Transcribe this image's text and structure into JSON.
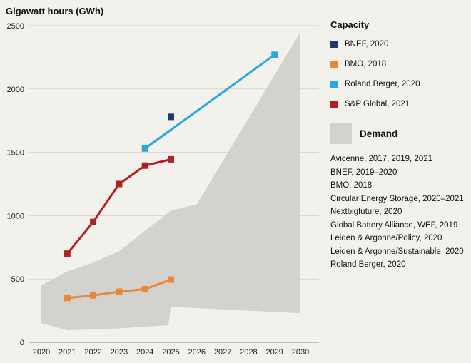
{
  "title": "Gigawatt hours (GWh)",
  "legend": {
    "capacity_heading": "Capacity",
    "capacity_items": [
      {
        "label": "BNEF, 2020",
        "color": "#1e3a6e"
      },
      {
        "label": "BMO, 2018",
        "color": "#e8873a"
      },
      {
        "label": "Roland Berger, 2020",
        "color": "#29a8e0"
      },
      {
        "label": "S&P Global, 2021",
        "color": "#b02025"
      }
    ],
    "demand_heading": "Demand",
    "demand_color": "#d4d2ce",
    "demand_sources": [
      "Avicenne, 2017, 2019, 2021",
      "BNEF, 2019–2020",
      "BMO, 2018",
      "Circular Energy Storage, 2020–2021",
      "Nextbigfuture, 2020",
      "Global Battery Alliance, WEF, 2019",
      "Leiden & Argonne/Policy, 2020",
      "Leiden & Argonne/Sustainable, 2020",
      "Roland Berger, 2020"
    ]
  },
  "chart_data": {
    "type": "line",
    "title": "Gigawatt hours (GWh)",
    "xlabel": "",
    "ylabel": "Gigawatt hours (GWh)",
    "xlim": [
      2019.5,
      2030.7
    ],
    "ylim": [
      0,
      2500
    ],
    "x_ticks": [
      2020,
      2021,
      2022,
      2023,
      2024,
      2025,
      2026,
      2027,
      2028,
      2029,
      2030
    ],
    "y_ticks": [
      0,
      500,
      1000,
      1500,
      2000,
      2500
    ],
    "grid": "horizontal",
    "legend_position": "right",
    "colors": {
      "background": "#f2f1ec",
      "gridline": "#d7d5cf",
      "baseline": "#8b8983",
      "text": "#1a1a1a"
    },
    "series": [
      {
        "name": "BNEF, 2020",
        "color": "#1e3a6e",
        "marker": "square",
        "x": [
          2025
        ],
        "y": [
          1780
        ]
      },
      {
        "name": "BMO, 2018",
        "color": "#e8873a",
        "marker": "square",
        "x": [
          2021,
          2022,
          2023,
          2024,
          2025
        ],
        "y": [
          350,
          370,
          400,
          420,
          495
        ]
      },
      {
        "name": "Roland Berger, 2020",
        "color": "#29a8e0",
        "marker": "square",
        "x": [
          2024,
          2029
        ],
        "y": [
          1530,
          2270
        ]
      },
      {
        "name": "S&P Global, 2021",
        "color": "#b02025",
        "marker": "square",
        "x": [
          2021,
          2022,
          2023,
          2024,
          2025
        ],
        "y": [
          700,
          950,
          1250,
          1395,
          1445
        ]
      }
    ],
    "demand_band": {
      "name": "Demand",
      "color": "#d4d2ce",
      "upper": {
        "x": [
          2020,
          2021,
          2022,
          2023,
          2024,
          2025,
          2026,
          2030
        ],
        "y": [
          450,
          560,
          630,
          720,
          880,
          1040,
          1090,
          2450
        ]
      },
      "lower": {
        "x": [
          2020,
          2021,
          2023,
          2024.9,
          2025,
          2030
        ],
        "y": [
          150,
          95,
          110,
          135,
          280,
          230
        ]
      }
    }
  }
}
